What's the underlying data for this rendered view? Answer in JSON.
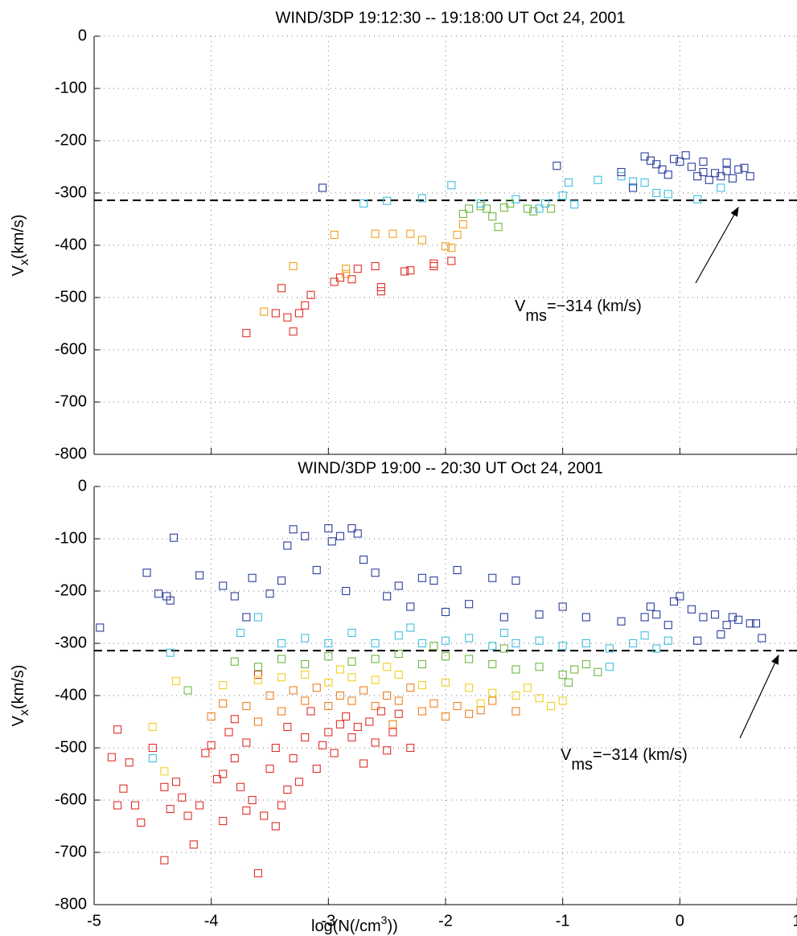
{
  "chart_data": [
    {
      "type": "scatter",
      "title": "WIND/3DP 19:12:30 -- 19:18:00 UT Oct 24, 2001",
      "ylabel": [
        "V",
        "x",
        "(km/s)"
      ],
      "xlim": [
        -5,
        1
      ],
      "xticks": [
        -5,
        -4,
        -3,
        -2,
        -1,
        0,
        1
      ],
      "xticklabels": false,
      "ylim": [
        -800,
        0
      ],
      "yticks": [
        -800,
        -700,
        -600,
        -500,
        -400,
        -300,
        -200,
        -100,
        0
      ],
      "grid": true,
      "hline": -314,
      "annotation": [
        "V",
        "ms",
        "=−314 (km/s)"
      ],
      "series": [
        {
          "color": "#e0302a",
          "x": [
            -3.7,
            -3.45,
            -3.35,
            -3.3,
            -3.2,
            -3.15,
            -3.4,
            -3.25,
            -2.95,
            -2.9,
            -2.8,
            -2.75,
            -2.6,
            -2.55,
            -2.55,
            -2.35,
            -2.3,
            -2.1,
            -2.1,
            -1.95
          ],
          "values": [
            -568,
            -530,
            -538,
            -565,
            -515,
            -495,
            -482,
            -530,
            -470,
            -462,
            -465,
            -445,
            -440,
            -480,
            -488,
            -450,
            -448,
            -435,
            -440,
            -430
          ]
        },
        {
          "color": "#f0a020",
          "x": [
            -3.55,
            -3.3,
            -2.95,
            -2.85,
            -2.85,
            -2.6,
            -2.45,
            -2.3,
            -2.2,
            -2.0,
            -1.95,
            -1.9,
            -1.85
          ],
          "values": [
            -527,
            -440,
            -380,
            -445,
            -455,
            -378,
            -378,
            -378,
            -390,
            -402,
            -405,
            -380,
            -360
          ]
        },
        {
          "color": "#70b840",
          "x": [
            -1.85,
            -1.8,
            -1.7,
            -1.65,
            -1.6,
            -1.55,
            -1.5,
            -1.45,
            -1.3,
            -1.25,
            -1.1
          ],
          "values": [
            -340,
            -330,
            -325,
            -330,
            -345,
            -365,
            -328,
            -320,
            -330,
            -335,
            -330
          ]
        },
        {
          "color": "#40c0e0",
          "x": [
            -2.7,
            -2.5,
            -2.2,
            -1.95,
            -1.7,
            -1.4,
            -1.2,
            -1.0,
            -0.9,
            -0.7,
            -0.5,
            -0.4,
            -0.3,
            -0.2,
            -0.1,
            0.15,
            0.35,
            -0.95,
            -1.15
          ],
          "values": [
            -320,
            -315,
            -310,
            -285,
            -320,
            -312,
            -330,
            -305,
            -322,
            -275,
            -268,
            -278,
            -280,
            -300,
            -302,
            -312,
            -290,
            -280,
            -320
          ]
        },
        {
          "color": "#2c3e9c",
          "x": [
            -3.05,
            -1.05,
            -0.4,
            -0.1,
            0.0,
            0.1,
            0.2,
            0.3,
            0.4,
            0.5,
            0.6,
            -0.05,
            -0.2,
            -0.3,
            0.25,
            0.45,
            0.55,
            -0.5,
            0.35,
            0.15,
            0.05,
            -0.15,
            0.4,
            0.2,
            -0.25
          ],
          "values": [
            -290,
            -248,
            -290,
            -265,
            -240,
            -250,
            -260,
            -262,
            -258,
            -255,
            -268,
            -235,
            -245,
            -230,
            -275,
            -272,
            -252,
            -260,
            -268,
            -268,
            -228,
            -255,
            -242,
            -240,
            -238
          ]
        }
      ]
    },
    {
      "type": "scatter",
      "title": "WIND/3DP 19:00 -- 20:30 UT Oct 24, 2001",
      "xlabel": [
        "log(N(/cm",
        "3",
        "))"
      ],
      "ylabel": [
        "V",
        "x",
        "(km/s)"
      ],
      "xlim": [
        -5,
        1
      ],
      "xticks": [
        -5,
        -4,
        -3,
        -2,
        -1,
        0,
        1
      ],
      "ylim": [
        -800,
        0
      ],
      "yticks": [
        -800,
        -700,
        -600,
        -500,
        -400,
        -300,
        -200,
        -100,
        0
      ],
      "grid": true,
      "hline": -314,
      "annotation": [
        "V",
        "ms",
        "=−314 (km/s)"
      ],
      "series": [
        {
          "color": "#e0302a",
          "x": [
            -4.85,
            -4.8,
            -4.75,
            -4.7,
            -4.8,
            -4.65,
            -4.6,
            -4.5,
            -4.4,
            -4.35,
            -4.4,
            -4.3,
            -4.25,
            -4.15,
            -4.1,
            -4.05,
            -4.0,
            -3.95,
            -3.9,
            -3.85,
            -3.8,
            -3.75,
            -3.7,
            -3.65,
            -3.6,
            -3.55,
            -3.5,
            -3.45,
            -3.4,
            -3.35,
            -3.3,
            -3.25,
            -3.2,
            -3.15,
            -3.1,
            -3.05,
            -3.0,
            -2.95,
            -2.9,
            -2.85,
            -2.8,
            -2.75,
            -2.7,
            -2.65,
            -2.6,
            -2.55,
            -2.5,
            -2.45,
            -2.4,
            -2.3,
            -3.9,
            -3.7,
            -3.45,
            -4.2,
            -3.35,
            -3.6,
            -3.8
          ],
          "values": [
            -518,
            -465,
            -578,
            -528,
            -610,
            -610,
            -643,
            -500,
            -575,
            -617,
            -715,
            -565,
            -595,
            -685,
            -610,
            -510,
            -495,
            -560,
            -550,
            -470,
            -520,
            -575,
            -490,
            -600,
            -740,
            -630,
            -540,
            -500,
            -610,
            -460,
            -520,
            -565,
            -480,
            -430,
            -540,
            -495,
            -470,
            -510,
            -455,
            -440,
            -480,
            -460,
            -530,
            -450,
            -490,
            -430,
            -505,
            -470,
            -435,
            -500,
            -640,
            -620,
            -650,
            -630,
            -580,
            -360,
            -445
          ]
        },
        {
          "color": "#f08020",
          "x": [
            -4.0,
            -3.9,
            -3.7,
            -3.5,
            -3.4,
            -3.3,
            -3.2,
            -3.1,
            -3.0,
            -2.9,
            -2.8,
            -2.7,
            -2.6,
            -2.5,
            -2.4,
            -2.3,
            -2.2,
            -2.1,
            -2.0,
            -1.9,
            -1.8,
            -1.7,
            -1.6,
            -1.4,
            -2.45,
            -3.6
          ],
          "values": [
            -440,
            -415,
            -420,
            -400,
            -430,
            -390,
            -410,
            -385,
            -420,
            -400,
            -410,
            -390,
            -420,
            -400,
            -410,
            -385,
            -430,
            -415,
            -440,
            -420,
            -435,
            -428,
            -410,
            -430,
            -455,
            -450
          ]
        },
        {
          "color": "#f0d020",
          "x": [
            -4.5,
            -4.4,
            -4.3,
            -3.9,
            -3.6,
            -3.4,
            -3.2,
            -3.0,
            -2.8,
            -2.6,
            -2.4,
            -2.2,
            -2.0,
            -1.8,
            -1.6,
            -1.4,
            -1.2,
            -1.1,
            -1.0,
            -1.7,
            -2.9,
            -2.5,
            -1.3
          ],
          "values": [
            -460,
            -545,
            -372,
            -380,
            -370,
            -365,
            -360,
            -375,
            -365,
            -370,
            -360,
            -380,
            -375,
            -385,
            -395,
            -400,
            -405,
            -420,
            -410,
            -415,
            -350,
            -345,
            -385
          ]
        },
        {
          "color": "#70b840",
          "x": [
            -4.2,
            -3.8,
            -3.6,
            -3.4,
            -3.2,
            -3.0,
            -2.8,
            -2.6,
            -2.4,
            -2.2,
            -2.0,
            -1.8,
            -1.6,
            -1.4,
            -1.2,
            -1.0,
            -0.9,
            -0.8,
            -0.7,
            -0.95,
            -1.5,
            -2.1
          ],
          "values": [
            -390,
            -335,
            -345,
            -330,
            -340,
            -325,
            -335,
            -330,
            -320,
            -340,
            -325,
            -330,
            -340,
            -350,
            -345,
            -360,
            -350,
            -340,
            -355,
            -375,
            -310,
            -305
          ]
        },
        {
          "color": "#40c0e0",
          "x": [
            -4.5,
            -4.35,
            -3.75,
            -3.6,
            -3.4,
            -3.2,
            -3.0,
            -2.8,
            -2.6,
            -2.4,
            -2.2,
            -2.0,
            -1.8,
            -1.6,
            -1.4,
            -1.2,
            -1.0,
            -0.8,
            -0.6,
            -0.4,
            -0.3,
            -0.2,
            -0.1,
            -0.6,
            -1.5,
            -2.3
          ],
          "values": [
            -520,
            -318,
            -280,
            -250,
            -300,
            -290,
            -300,
            -280,
            -300,
            -285,
            -300,
            -295,
            -290,
            -305,
            -300,
            -295,
            -305,
            -300,
            -310,
            -300,
            -285,
            -310,
            -295,
            -345,
            -280,
            -270
          ]
        },
        {
          "color": "#2c3e9c",
          "x": [
            -4.95,
            -4.55,
            -4.45,
            -4.38,
            -4.35,
            -4.32,
            -4.1,
            -3.9,
            -3.8,
            -3.65,
            -3.5,
            -3.4,
            -3.35,
            -3.3,
            -3.2,
            -3.1,
            -3.0,
            -2.97,
            -2.9,
            -2.8,
            -2.75,
            -2.7,
            -2.6,
            -2.5,
            -2.4,
            -2.3,
            -2.2,
            -2.1,
            -2.0,
            -1.9,
            -1.8,
            -1.6,
            -1.4,
            -1.2,
            -1.0,
            -0.8,
            -0.5,
            -0.3,
            -0.2,
            -0.1,
            0.0,
            0.1,
            0.2,
            0.3,
            0.4,
            0.5,
            0.6,
            0.7,
            0.65,
            0.35,
            0.15,
            0.45,
            -0.05,
            -0.25,
            -3.7,
            -2.85,
            -1.5
          ],
          "values": [
            -270,
            -165,
            -205,
            -210,
            -218,
            -98,
            -170,
            -190,
            -210,
            -175,
            -205,
            -180,
            -113,
            -82,
            -95,
            -160,
            -80,
            -105,
            -95,
            -80,
            -90,
            -140,
            -165,
            -210,
            -190,
            -230,
            -175,
            -180,
            -240,
            -160,
            -225,
            -175,
            -180,
            -245,
            -230,
            -250,
            -258,
            -250,
            -245,
            -265,
            -210,
            -235,
            -250,
            -245,
            -265,
            -255,
            -262,
            -290,
            -262,
            -283,
            -295,
            -250,
            -220,
            -230,
            -250,
            -200,
            -250
          ]
        }
      ]
    }
  ]
}
